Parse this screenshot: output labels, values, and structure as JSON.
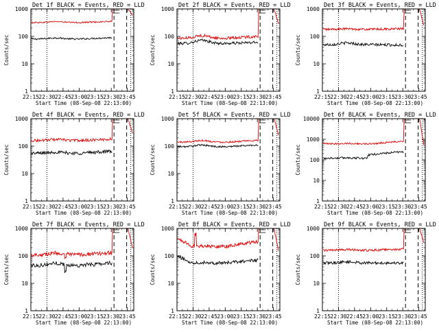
{
  "colors": {
    "background": "#ffffff",
    "events": "#000000",
    "lld": "#e00000",
    "axis": "#000000"
  },
  "chart_data": [
    {
      "type": "line",
      "title": "Det 1f BLACK = Events, RED = LLD",
      "xlabel": "Start Time (08-Sep-08 22:13:00)",
      "ylabel": "Counts/sec",
      "x_ticks": [
        "22:15",
        "22:30",
        "22:45",
        "23:00",
        "23:15",
        "23:30",
        "23:45"
      ],
      "y_ticks": [
        "1",
        "10",
        "100",
        "1000"
      ],
      "y_scale": "log",
      "ylim": [
        1,
        1000
      ],
      "vertical_markers": {
        "dotted": [
          "22:30",
          "23:45"
        ],
        "dashed": [
          "23:30",
          "23:45"
        ]
      },
      "series": [
        {
          "role": "events",
          "level": 80,
          "end_level": 90,
          "noise": 0.03,
          "bump": 1.1
        },
        {
          "role": "lld",
          "level": 320,
          "end_level": 350,
          "noise": 0.025,
          "bump": 1.08,
          "spike": 1000,
          "tail_start": 1000,
          "tail_end": 600
        }
      ]
    },
    {
      "type": "line",
      "title": "Det 2f BLACK = Events, RED = LLD",
      "xlabel": "Start Time (08-Sep-08 22:13:00)",
      "ylabel": "Counts/sec",
      "x_ticks": [
        "22:15",
        "22:30",
        "22:45",
        "23:00",
        "23:15",
        "23:30",
        "23:45"
      ],
      "y_ticks": [
        "1",
        "10",
        "100",
        "1000"
      ],
      "y_scale": "log",
      "ylim": [
        1,
        1000
      ],
      "vertical_markers": {
        "dotted": [
          "22:30",
          "23:45"
        ],
        "dashed": [
          "23:30",
          "23:45"
        ]
      },
      "series": [
        {
          "role": "events",
          "level": 55,
          "end_level": 60,
          "noise": 0.05,
          "bump": 1.3
        },
        {
          "role": "lld",
          "level": 85,
          "end_level": 100,
          "noise": 0.05,
          "bump": 1.25,
          "spike": 1000,
          "tail_start": 1000,
          "tail_end": 300
        }
      ]
    },
    {
      "type": "line",
      "title": "Det 3f BLACK = Events, RED = LLD",
      "xlabel": "Start Time (08-Sep-08 22:13:00)",
      "ylabel": "Counts/sec",
      "x_ticks": [
        "22:15",
        "22:30",
        "22:45",
        "23:00",
        "23:15",
        "23:30",
        "23:45"
      ],
      "y_ticks": [
        "1",
        "10",
        "100",
        "1000"
      ],
      "y_scale": "log",
      "ylim": [
        1,
        1000
      ],
      "vertical_markers": {
        "dotted": [
          "22:30",
          "23:45"
        ],
        "dashed": [
          "23:30",
          "23:45"
        ]
      },
      "series": [
        {
          "role": "events",
          "level": 50,
          "end_level": 48,
          "noise": 0.05,
          "bump": 1.15
        },
        {
          "role": "lld",
          "level": 180,
          "end_level": 190,
          "noise": 0.04,
          "bump": 1.05,
          "spike": 1000,
          "tail_start": 1000,
          "tail_end": 250
        }
      ]
    },
    {
      "type": "line",
      "title": "Det 4f BLACK = Events, RED = LLD",
      "xlabel": "Start Time (08-Sep-08 22:13:00)",
      "ylabel": "Counts/sec",
      "x_ticks": [
        "22:15",
        "22:30",
        "22:45",
        "23:00",
        "23:15",
        "23:30",
        "23:45"
      ],
      "y_ticks": [
        "1",
        "10",
        "100",
        "1000"
      ],
      "y_scale": "log",
      "ylim": [
        1,
        1000
      ],
      "vertical_markers": {
        "dotted": [
          "22:30",
          "23:45"
        ],
        "dashed": [
          "23:30",
          "23:45"
        ]
      },
      "series": [
        {
          "role": "events",
          "level": 55,
          "end_level": 65,
          "noise": 0.06,
          "bump": 1.1
        },
        {
          "role": "lld",
          "level": 160,
          "end_level": 180,
          "noise": 0.05,
          "bump": 1.1,
          "spike": 1000,
          "tail_start": 1000,
          "tail_end": 300
        }
      ]
    },
    {
      "type": "line",
      "title": "Det 5f BLACK = Events, RED = LLD",
      "xlabel": "Start Time (08-Sep-08 22:13:00)",
      "ylabel": "Counts/sec",
      "x_ticks": [
        "22:15",
        "22:30",
        "22:45",
        "23:00",
        "23:15",
        "23:30",
        "23:45"
      ],
      "y_ticks": [
        "1",
        "10",
        "100",
        "1000"
      ],
      "y_scale": "log",
      "ylim": [
        1,
        1000
      ],
      "vertical_markers": {
        "dotted": [
          "22:30",
          "23:45"
        ],
        "dashed": [
          "23:30",
          "23:45"
        ]
      },
      "series": [
        {
          "role": "events",
          "level": 95,
          "end_level": 110,
          "noise": 0.03,
          "bump": 1.15
        },
        {
          "role": "lld",
          "level": 140,
          "end_level": 160,
          "noise": 0.03,
          "bump": 1.15,
          "spike": 1000,
          "tail_start": 1000,
          "tail_end": 250
        }
      ]
    },
    {
      "type": "line",
      "title": "Det 6f BLACK = Events, RED = LLD",
      "xlabel": "Start Time (08-Sep-08 22:13:00)",
      "ylabel": "Counts/sec",
      "x_ticks": [
        "22:15",
        "22:30",
        "22:45",
        "23:00",
        "23:15",
        "23:30",
        "23:45"
      ],
      "y_ticks": [
        "1",
        "10",
        "100",
        "1000",
        "10000"
      ],
      "y_scale": "log",
      "ylim": [
        1,
        10000
      ],
      "vertical_markers": {
        "dotted": [
          "22:30",
          "23:45"
        ],
        "dashed": [
          "23:30",
          "23:45"
        ]
      },
      "series": [
        {
          "role": "events",
          "level": 120,
          "end_level": 250,
          "noise": 0.05,
          "bump": 1.05,
          "step_at": 0.55,
          "step_to": 170
        },
        {
          "role": "lld",
          "level": 600,
          "end_level": 800,
          "noise": 0.04,
          "bump": 1.05,
          "spike": 10000,
          "tail_start": 10000,
          "tail_end": 500
        }
      ]
    },
    {
      "type": "line",
      "title": "Det 7f BLACK = Events, RED = LLD",
      "xlabel": "Start Time (08-Sep-08 22:13:00)",
      "ylabel": "Counts/sec",
      "x_ticks": [
        "22:15",
        "22:30",
        "22:45",
        "23:00",
        "23:15",
        "23:30",
        "23:45"
      ],
      "y_ticks": [
        "1",
        "10",
        "100",
        "1000"
      ],
      "y_scale": "log",
      "ylim": [
        1,
        1000
      ],
      "vertical_markers": {
        "dotted": [
          "22:30",
          "23:45"
        ],
        "dashed": [
          "23:30",
          "23:45"
        ]
      },
      "series": [
        {
          "role": "events",
          "level": 45,
          "end_level": 55,
          "noise": 0.07,
          "bump": 1.2,
          "dip_at": 0.42,
          "dip_to": 25
        },
        {
          "role": "lld",
          "level": 110,
          "end_level": 130,
          "noise": 0.07,
          "bump": 1.15,
          "dip_at": 0.42,
          "dip_to": 75,
          "spike": 1000,
          "tail_start": 1000,
          "tail_end": 200
        }
      ]
    },
    {
      "type": "line",
      "title": "Det 8f BLACK = Events, RED = LLD",
      "xlabel": "Start Time (08-Sep-08 22:13:00)",
      "ylabel": "Counts/sec",
      "x_ticks": [
        "22:15",
        "22:30",
        "22:45",
        "23:00",
        "23:15",
        "23:30",
        "23:45"
      ],
      "y_ticks": [
        "1",
        "10",
        "100",
        "1000"
      ],
      "y_scale": "log",
      "ylim": [
        1,
        1000
      ],
      "vertical_markers": {
        "dotted": [
          "22:30",
          "23:45"
        ],
        "dashed": [
          "23:30",
          "23:45"
        ]
      },
      "series": [
        {
          "role": "events",
          "level": 55,
          "start_level": 95,
          "end_level": 70,
          "noise": 0.06,
          "bump": 1.05
        },
        {
          "role": "lld",
          "level": 220,
          "start_level": 420,
          "end_level": 330,
          "noise": 0.06,
          "bump": 1.05,
          "spike": 1000,
          "tail_start": 1000,
          "tail_end": 150,
          "early_spike": 650
        }
      ]
    },
    {
      "type": "line",
      "title": "Det 9f BLACK = Events, RED = LLD",
      "xlabel": "Start Time (08-Sep-08 22:13:00)",
      "ylabel": "Counts/sec",
      "x_ticks": [
        "22:15",
        "22:30",
        "22:45",
        "23:00",
        "23:15",
        "23:30",
        "23:45"
      ],
      "y_ticks": [
        "1",
        "10",
        "100",
        "1000"
      ],
      "y_scale": "log",
      "ylim": [
        1,
        1000
      ],
      "vertical_markers": {
        "dotted": [
          "22:30",
          "23:45"
        ],
        "dashed": [
          "23:30",
          "23:45"
        ]
      },
      "series": [
        {
          "role": "events",
          "level": 55,
          "end_level": 55,
          "noise": 0.05,
          "bump": 1.1
        },
        {
          "role": "lld",
          "level": 160,
          "end_level": 175,
          "noise": 0.04,
          "bump": 1.05,
          "spike": 1000,
          "tail_start": 1000,
          "tail_end": 300
        }
      ]
    }
  ]
}
